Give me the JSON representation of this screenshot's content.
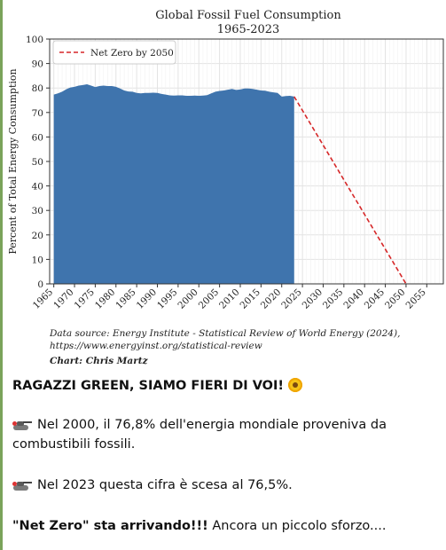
{
  "chart_data": {
    "type": "area",
    "title": "Global Fossil Fuel Consumption",
    "subtitle": "1965-2023",
    "ylabel": "Percent of Total Energy Consumption",
    "xlabel": "",
    "ylim": [
      0,
      100
    ],
    "xlim": [
      1964,
      2059
    ],
    "yticks": [
      0,
      10,
      20,
      30,
      40,
      50,
      60,
      70,
      80,
      90,
      100
    ],
    "xticks": [
      1965,
      1970,
      1975,
      1980,
      1985,
      1990,
      1995,
      2000,
      2005,
      2010,
      2015,
      2020,
      2025,
      2030,
      2035,
      2040,
      2045,
      2050,
      2055
    ],
    "grid": true,
    "legend_position": "top-left",
    "series": [
      {
        "type": "area",
        "color": "#3f74ad",
        "x": [
          1965,
          1966,
          1967,
          1968,
          1969,
          1970,
          1971,
          1972,
          1973,
          1974,
          1975,
          1976,
          1977,
          1978,
          1979,
          1980,
          1981,
          1982,
          1983,
          1984,
          1985,
          1986,
          1987,
          1988,
          1989,
          1990,
          1991,
          1992,
          1993,
          1994,
          1995,
          1996,
          1997,
          1998,
          1999,
          2000,
          2001,
          2002,
          2003,
          2004,
          2005,
          2006,
          2007,
          2008,
          2009,
          2010,
          2011,
          2012,
          2013,
          2014,
          2015,
          2016,
          2017,
          2018,
          2019,
          2020,
          2021,
          2022,
          2023
        ],
        "values": [
          77.3,
          77.8,
          78.5,
          79.5,
          80.2,
          80.5,
          81,
          81.2,
          81.5,
          81,
          80.4,
          80.8,
          81,
          80.8,
          80.8,
          80.5,
          79.8,
          79,
          78.6,
          78.5,
          78,
          77.8,
          78,
          78,
          78.1,
          78,
          77.6,
          77.3,
          77,
          76.9,
          77,
          77,
          76.8,
          76.8,
          76.9,
          76.8,
          76.9,
          77.1,
          77.8,
          78.5,
          78.8,
          79,
          79.3,
          79.6,
          79.2,
          79.4,
          79.8,
          79.8,
          79.6,
          79.3,
          79,
          78.9,
          78.5,
          78.2,
          78,
          76.5,
          76.7,
          76.8,
          76.5
        ]
      },
      {
        "name": "Net Zero by 2050",
        "type": "line",
        "style": "dashed",
        "color": "#d62728",
        "x": [
          2023,
          2050
        ],
        "values": [
          76.5,
          0
        ]
      }
    ],
    "source_line1": "Data source: Energy Institute - Statistical Review of World Energy (2024),",
    "source_line2": "https://www.energyinst.org/statistical-review",
    "credit": "Chart: Chris Martz"
  },
  "post": {
    "line1_text": "RAGAZZI GREEN, SIAMO FIERI DI VOI!",
    "line1_emoji": "sunflower",
    "line2_text": "Nel 2000, il 76,8% dell'energia mondiale proveniva da combustibili fossili.",
    "line3_text": "Nel 2023 questa cifra è scesa al 76,5%.",
    "line4_bold": "\"Net Zero\" sta arrivando!!!",
    "line4_rest": " Ancora un piccolo sforzo....",
    "bullet_icon": "tank-emoji"
  }
}
